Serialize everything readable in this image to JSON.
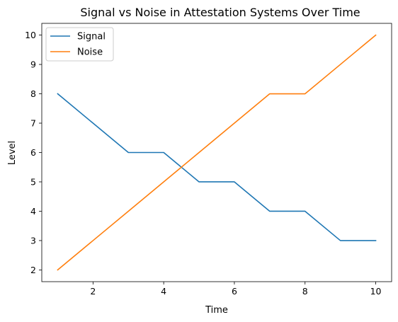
{
  "chart_data": {
    "type": "line",
    "title": "Signal vs Noise in Attestation Systems Over Time",
    "xlabel": "Time",
    "ylabel": "Level",
    "x": [
      1,
      2,
      3,
      4,
      5,
      6,
      7,
      8,
      9,
      10
    ],
    "series": [
      {
        "name": "Signal",
        "color": "#1f77b4",
        "values": [
          8,
          7,
          6,
          6,
          5,
          5,
          4,
          4,
          3,
          3
        ]
      },
      {
        "name": "Noise",
        "color": "#ff7f0e",
        "values": [
          2,
          3,
          4,
          5,
          6,
          7,
          8,
          8,
          9,
          10
        ]
      }
    ],
    "xlim": [
      0.55,
      10.45
    ],
    "ylim": [
      1.6,
      10.4
    ],
    "xticks": [
      2,
      4,
      6,
      8,
      10
    ],
    "yticks": [
      2,
      3,
      4,
      5,
      6,
      7,
      8,
      9,
      10
    ],
    "grid": false,
    "legend": "top-left"
  }
}
